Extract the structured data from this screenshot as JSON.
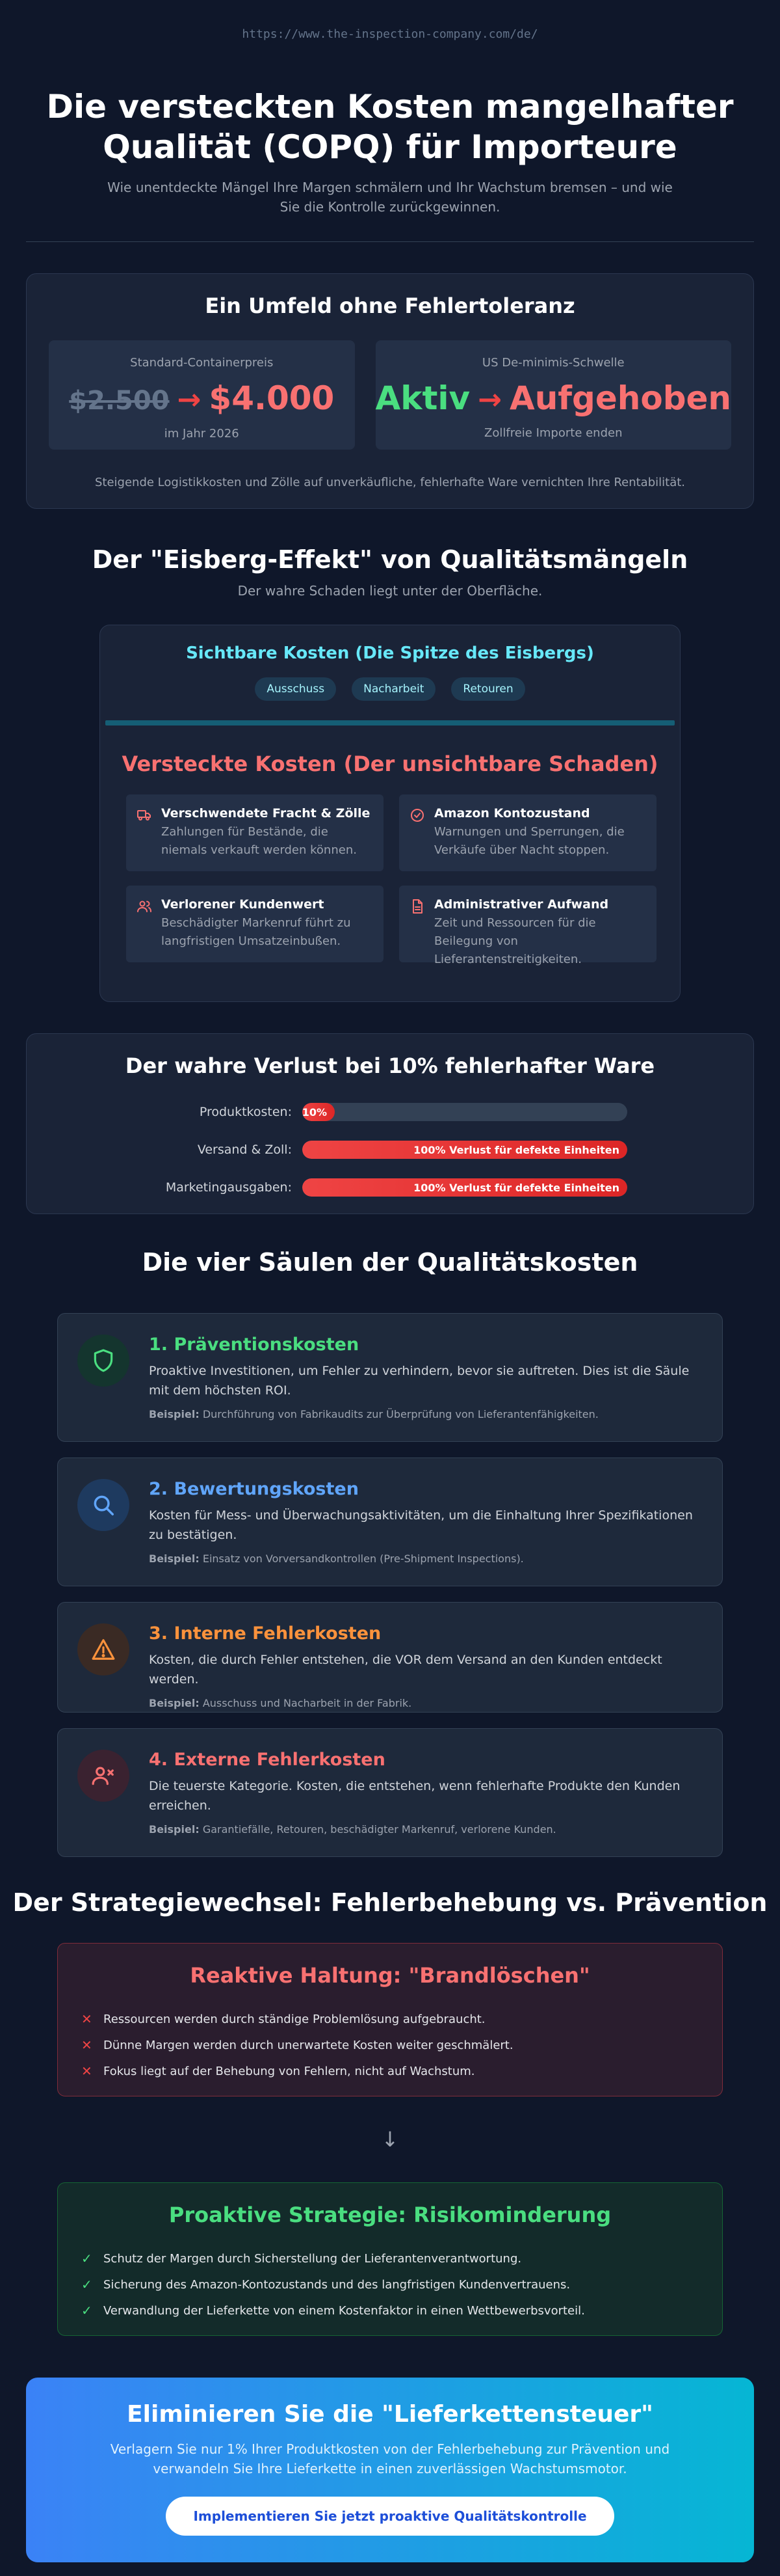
{
  "url": "https://www.the-inspection-company.com/de/",
  "header": {
    "title": "Die versteckten Kosten mangelhafter Qualität (COPQ) für Importeure",
    "subtitle": "Wie unentdeckte Mängel Ihre Margen schmälern und Ihr Wachstum bremsen – und wie Sie die Kontrolle zurückgewinnen."
  },
  "environment": {
    "title": "Ein Umfeld ohne Fehlertoleranz",
    "container": {
      "label": "Standard-Containerpreis",
      "old": "$2.500",
      "new": "$4.000",
      "note": "im Jahr 2026"
    },
    "deminimis": {
      "label": "US De-minimis-Schwelle",
      "old": "Aktiv",
      "new": "Aufgehoben",
      "note": "Zollfreie Importe enden"
    },
    "footer": "Steigende Logistikkosten und Zölle auf unverkäufliche, fehlerhafte Ware vernichten Ihre Rentabilität."
  },
  "iceberg": {
    "title": "Der \"Eisberg-Effekt\" von Qualitätsmängeln",
    "subtitle": "Der wahre Schaden liegt unter der Oberfläche.",
    "visible_title": "Sichtbare Kosten (Die Spitze des Eisbergs)",
    "pills": [
      "Ausschuss",
      "Nacharbeit",
      "Retouren"
    ],
    "hidden_title": "Versteckte Kosten (Der unsichtbare Schaden)",
    "hidden_items": [
      {
        "title": "Verschwendete Fracht & Zölle",
        "text": "Zahlungen für Bestände, die niemals verkauft werden können.",
        "icon": "truck-icon"
      },
      {
        "title": "Amazon Kontozustand",
        "text": "Warnungen und Sperrungen, die Verkäufe über Nacht stoppen.",
        "icon": "check-circle-icon"
      },
      {
        "title": "Verlorener Kundenwert",
        "text": "Beschädigter Markenruf führt zu langfristigen Umsatzeinbußen.",
        "icon": "users-icon"
      },
      {
        "title": "Administrativer Aufwand",
        "text": "Zeit und Ressourcen für die Beilegung von Lieferantenstreitigkeiten.",
        "icon": "document-icon"
      }
    ]
  },
  "loss": {
    "title": "Der wahre Verlust bei 10% fehlerhafter Ware",
    "bars": [
      {
        "label": "Produktkosten:",
        "text": "10%",
        "fraction": 0.1
      },
      {
        "label": "Versand & Zoll:",
        "text": "100% Verlust für defekte Einheiten",
        "fraction": 1.0
      },
      {
        "label": "Marketingausgaben:",
        "text": "100% Verlust für defekte Einheiten",
        "fraction": 1.0
      }
    ]
  },
  "pillars": {
    "title": "Die vier Säulen der Qualitätskosten",
    "example_label": "Beispiel:",
    "items": [
      {
        "title": "1. Präventionskosten",
        "text": "Proaktive Investitionen, um Fehler zu verhindern, bevor sie auftreten. Dies ist die Säule mit dem höchsten ROI.",
        "example": "Durchführung von Fabrikaudits zur Überprüfung von Lieferantenfähigkeiten.",
        "color": "#4ade80",
        "icon": "shield-icon"
      },
      {
        "title": "2. Bewertungskosten",
        "text": "Kosten für Mess- und Überwachungsaktivitäten, um die Einhaltung Ihrer Spezifikationen zu bestätigen.",
        "example": "Einsatz von Vorversandkontrollen (Pre-Shipment Inspections).",
        "color": "#60a5fa",
        "icon": "search-icon"
      },
      {
        "title": "3. Interne Fehlerkosten",
        "text": "Kosten, die durch Fehler entstehen, die VOR dem Versand an den Kunden entdeckt werden.",
        "example": "Ausschuss und Nacharbeit in der Fabrik.",
        "color": "#fb923c",
        "icon": "warning-icon"
      },
      {
        "title": "4. Externe Fehlerkosten",
        "text": "Die teuerste Kategorie. Kosten, die entstehen, wenn fehlerhafte Produkte den Kunden erreichen.",
        "example": "Garantiefälle, Retouren, beschädigter Markenruf, verlorene Kunden.",
        "color": "#f87171",
        "icon": "user-x-icon"
      }
    ]
  },
  "strategy": {
    "title": "Der Strategiewechsel: Fehlerbehebung vs. Prävention",
    "reactive": {
      "title": "Reaktive Haltung: \"Brandlöschen\"",
      "items": [
        "Ressourcen werden durch ständige Problemlösung aufgebraucht.",
        "Dünne Margen werden durch unerwartete Kosten weiter geschmälert.",
        "Fokus liegt auf der Behebung von Fehlern, nicht auf Wachstum."
      ]
    },
    "arrow": "↓",
    "proactive": {
      "title": "Proaktive Strategie: Risikominderung",
      "items": [
        "Schutz der Margen durch Sicherstellung der Lieferantenverantwortung.",
        "Sicherung des Amazon-Kontozustands und des langfristigen Kundenvertrauens.",
        "Verwandlung der Lieferkette von einem Kostenfaktor in einen Wettbewerbsvorteil."
      ]
    }
  },
  "cta": {
    "title": "Eliminieren Sie die \"Lieferkettensteuer\"",
    "text": "Verlagern Sie nur 1% Ihrer Produktkosten von der Fehlerbehebung zur Prävention und verwandeln Sie Ihre Lieferkette in einen zuverlässigen Wachstumsmotor.",
    "button": "Implementieren Sie jetzt proaktive Qualitätskontrolle"
  }
}
